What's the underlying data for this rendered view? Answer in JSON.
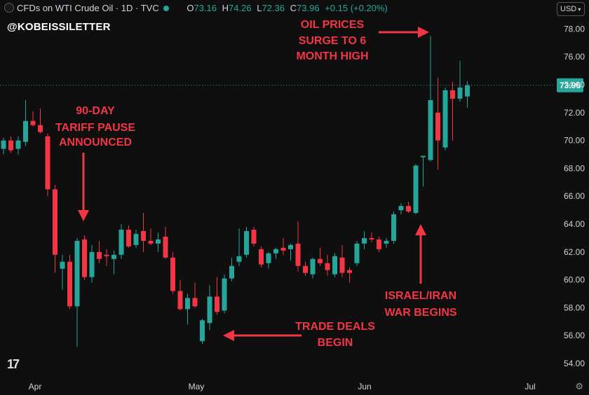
{
  "header": {
    "title": "CFDs on WTI Crude Oil · 1D · TVC",
    "o_key": "O",
    "o_val": "73.16",
    "h_key": "H",
    "h_val": "74.26",
    "l_key": "L",
    "l_val": "72.36",
    "c_key": "C",
    "c_val": "73.96",
    "change": "+0.15 (+0.20%)"
  },
  "watermark": "@KOBEISSILETTER",
  "currency": "USD",
  "colors": {
    "up": "#26a69a",
    "down": "#f23645",
    "annotation": "#f23645",
    "background": "#0f0f0f",
    "axis_text": "#d1d4dc"
  },
  "chart_data": {
    "type": "candlestick",
    "title": "CFDs on WTI Crude Oil · 1D · TVC",
    "ylim": [
      53.5,
      79
    ],
    "y_ticks": [
      "54.00",
      "56.00",
      "58.00",
      "60.00",
      "62.00",
      "64.00",
      "66.00",
      "68.00",
      "70.00",
      "72.00",
      "74.00",
      "76.00",
      "78.00"
    ],
    "x_ticks": [
      "Apr",
      "May",
      "Jun",
      "Jul"
    ],
    "last_price": {
      "value": 73.96,
      "label": "73.96"
    },
    "candles": [
      {
        "o": 69.4,
        "h": 70.2,
        "l": 69.0,
        "c": 70.0
      },
      {
        "o": 70.0,
        "h": 70.3,
        "l": 69.1,
        "c": 69.3
      },
      {
        "o": 69.4,
        "h": 70.3,
        "l": 69.0,
        "c": 70.0
      },
      {
        "o": 69.9,
        "h": 72.9,
        "l": 69.6,
        "c": 71.4
      },
      {
        "o": 71.4,
        "h": 72.1,
        "l": 71.0,
        "c": 71.1
      },
      {
        "o": 71.1,
        "h": 72.3,
        "l": 70.5,
        "c": 70.6
      },
      {
        "o": 70.3,
        "h": 70.5,
        "l": 66.0,
        "c": 66.5
      },
      {
        "o": 66.5,
        "h": 66.8,
        "l": 60.5,
        "c": 61.8
      },
      {
        "o": 60.8,
        "h": 61.8,
        "l": 59.3,
        "c": 61.3
      },
      {
        "o": 61.3,
        "h": 61.8,
        "l": 57.9,
        "c": 58.1
      },
      {
        "o": 58.1,
        "h": 63.0,
        "l": 55.2,
        "c": 62.8
      },
      {
        "o": 62.9,
        "h": 63.2,
        "l": 60.0,
        "c": 60.2
      },
      {
        "o": 60.2,
        "h": 62.5,
        "l": 59.8,
        "c": 62.0
      },
      {
        "o": 62.0,
        "h": 62.8,
        "l": 61.2,
        "c": 61.5
      },
      {
        "o": 61.8,
        "h": 62.2,
        "l": 61.0,
        "c": 61.7
      },
      {
        "o": 61.5,
        "h": 62.1,
        "l": 60.4,
        "c": 61.8
      },
      {
        "o": 61.8,
        "h": 64.0,
        "l": 61.5,
        "c": 63.6
      },
      {
        "o": 63.6,
        "h": 63.9,
        "l": 62.3,
        "c": 62.4
      },
      {
        "o": 62.5,
        "h": 63.6,
        "l": 62.3,
        "c": 63.3
      },
      {
        "o": 63.5,
        "h": 64.8,
        "l": 62.0,
        "c": 62.8
      },
      {
        "o": 62.8,
        "h": 63.7,
        "l": 62.5,
        "c": 62.6
      },
      {
        "o": 62.6,
        "h": 63.4,
        "l": 62.0,
        "c": 62.9
      },
      {
        "o": 63.1,
        "h": 63.8,
        "l": 61.5,
        "c": 61.6
      },
      {
        "o": 61.6,
        "h": 62.0,
        "l": 59.0,
        "c": 59.2
      },
      {
        "o": 59.2,
        "h": 60.0,
        "l": 57.8,
        "c": 57.9
      },
      {
        "o": 57.9,
        "h": 59.0,
        "l": 56.8,
        "c": 58.7
      },
      {
        "o": 58.7,
        "h": 59.8,
        "l": 58.0,
        "c": 58.1
      },
      {
        "o": 55.6,
        "h": 57.2,
        "l": 55.4,
        "c": 57.1
      },
      {
        "o": 56.9,
        "h": 59.6,
        "l": 56.4,
        "c": 58.8
      },
      {
        "o": 58.8,
        "h": 60.2,
        "l": 57.5,
        "c": 57.7
      },
      {
        "o": 57.8,
        "h": 60.4,
        "l": 57.6,
        "c": 60.1
      },
      {
        "o": 60.1,
        "h": 61.6,
        "l": 59.9,
        "c": 61.0
      },
      {
        "o": 61.3,
        "h": 63.7,
        "l": 61.0,
        "c": 61.7
      },
      {
        "o": 61.8,
        "h": 63.8,
        "l": 61.6,
        "c": 63.5
      },
      {
        "o": 63.6,
        "h": 63.8,
        "l": 62.4,
        "c": 62.6
      },
      {
        "o": 62.2,
        "h": 62.4,
        "l": 60.9,
        "c": 61.1
      },
      {
        "o": 61.2,
        "h": 62.0,
        "l": 60.8,
        "c": 61.9
      },
      {
        "o": 61.9,
        "h": 62.3,
        "l": 61.5,
        "c": 62.2
      },
      {
        "o": 62.3,
        "h": 63.0,
        "l": 61.8,
        "c": 62.1
      },
      {
        "o": 62.2,
        "h": 62.6,
        "l": 61.4,
        "c": 62.5
      },
      {
        "o": 62.6,
        "h": 64.2,
        "l": 60.6,
        "c": 61.0
      },
      {
        "o": 61.0,
        "h": 61.3,
        "l": 60.3,
        "c": 60.5
      },
      {
        "o": 60.4,
        "h": 61.6,
        "l": 60.1,
        "c": 61.5
      },
      {
        "o": 61.5,
        "h": 62.3,
        "l": 61.0,
        "c": 61.2
      },
      {
        "o": 61.2,
        "h": 61.8,
        "l": 60.3,
        "c": 60.7
      },
      {
        "o": 60.4,
        "h": 61.9,
        "l": 60.2,
        "c": 61.7
      },
      {
        "o": 61.6,
        "h": 62.5,
        "l": 60.2,
        "c": 60.5
      },
      {
        "o": 60.7,
        "h": 60.9,
        "l": 59.8,
        "c": 60.5
      },
      {
        "o": 61.2,
        "h": 62.8,
        "l": 61.0,
        "c": 62.6
      },
      {
        "o": 62.6,
        "h": 63.5,
        "l": 62.2,
        "c": 63.0
      },
      {
        "o": 63.0,
        "h": 63.4,
        "l": 62.7,
        "c": 62.9
      },
      {
        "o": 62.9,
        "h": 63.1,
        "l": 62.0,
        "c": 62.2
      },
      {
        "o": 62.6,
        "h": 63.0,
        "l": 62.3,
        "c": 62.8
      },
      {
        "o": 62.8,
        "h": 64.9,
        "l": 62.6,
        "c": 64.7
      },
      {
        "o": 65.0,
        "h": 65.5,
        "l": 64.7,
        "c": 65.3
      },
      {
        "o": 65.3,
        "h": 65.6,
        "l": 64.8,
        "c": 64.9
      },
      {
        "o": 64.8,
        "h": 68.3,
        "l": 64.7,
        "c": 68.2
      },
      {
        "o": 68.8,
        "h": 68.9,
        "l": 66.7,
        "c": 68.9
      },
      {
        "o": 68.6,
        "h": 77.5,
        "l": 68.5,
        "c": 72.9
      },
      {
        "o": 72.0,
        "h": 74.5,
        "l": 67.9,
        "c": 70.0
      },
      {
        "o": 69.5,
        "h": 73.8,
        "l": 69.3,
        "c": 73.6
      },
      {
        "o": 73.6,
        "h": 74.2,
        "l": 70.0,
        "c": 73.0
      },
      {
        "o": 73.0,
        "h": 75.7,
        "l": 72.8,
        "c": 73.8
      },
      {
        "o": 73.16,
        "h": 74.26,
        "l": 72.36,
        "c": 73.96
      }
    ],
    "annotations": [
      {
        "text": [
          "90-DAY",
          "TARIFF PAUSE",
          "ANNOUNCED"
        ]
      },
      {
        "text": [
          "OIL PRICES",
          "SURGE TO 6",
          "MONTH HIGH"
        ]
      },
      {
        "text": [
          "TRADE DEALS",
          "BEGIN"
        ]
      },
      {
        "text": [
          "ISRAEL/IRAN",
          "WAR BEGINS"
        ]
      }
    ]
  }
}
